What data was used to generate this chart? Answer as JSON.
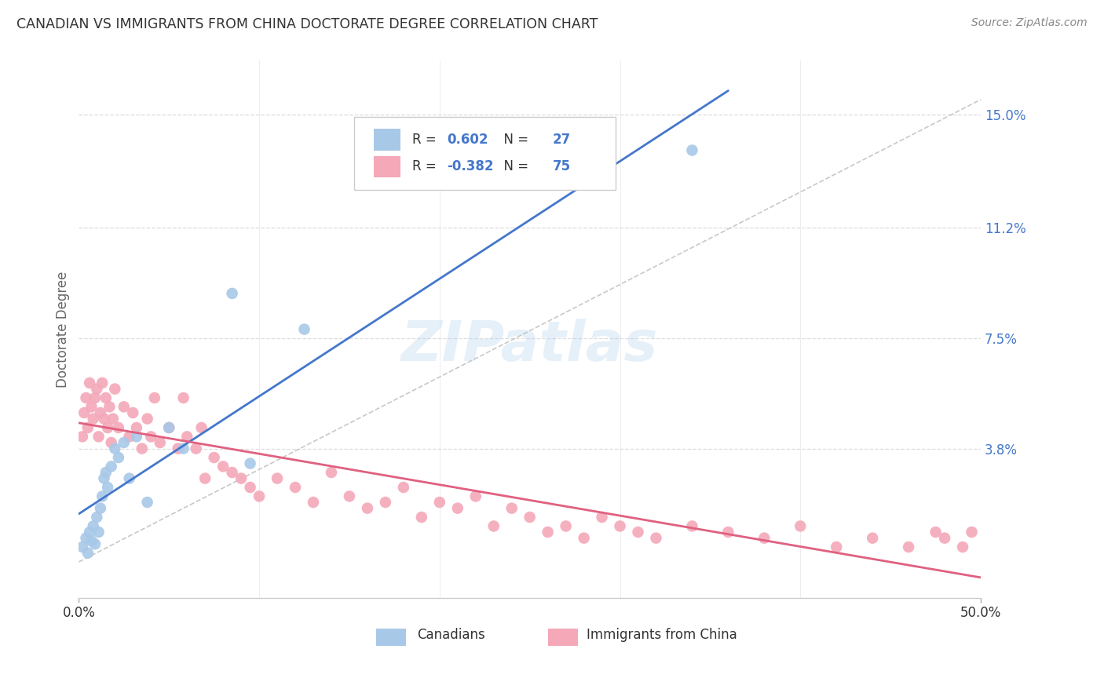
{
  "title": "CANADIAN VS IMMIGRANTS FROM CHINA DOCTORATE DEGREE CORRELATION CHART",
  "source": "Source: ZipAtlas.com",
  "ylabel": "Doctorate Degree",
  "watermark": "ZIPatlas",
  "ytick_labels": [
    "",
    "3.8%",
    "7.5%",
    "11.2%",
    "15.0%"
  ],
  "ytick_values": [
    0.0,
    0.038,
    0.075,
    0.112,
    0.15
  ],
  "xlim": [
    0.0,
    0.5
  ],
  "ylim": [
    -0.012,
    0.168
  ],
  "legend_r1": "R =  0.602",
  "legend_n1": "N = 27",
  "legend_r2": "R = -0.382",
  "legend_n2": "N = 75",
  "text_color_black": "#333333",
  "text_color_blue": "#4477cc",
  "canadian_color": "#a8c8e8",
  "china_color": "#f4a8b8",
  "canadian_line_color": "#4477cc",
  "china_line_color": "#e06080",
  "dashed_line_color": "#bbbbbb",
  "background_color": "#ffffff",
  "grid_color": "#dddddd",
  "canadian_x": [
    0.002,
    0.004,
    0.005,
    0.006,
    0.007,
    0.008,
    0.009,
    0.01,
    0.011,
    0.012,
    0.013,
    0.014,
    0.015,
    0.016,
    0.018,
    0.02,
    0.022,
    0.025,
    0.028,
    0.032,
    0.038,
    0.05,
    0.058,
    0.085,
    0.095,
    0.125,
    0.34
  ],
  "canadian_y": [
    0.005,
    0.008,
    0.003,
    0.01,
    0.007,
    0.012,
    0.006,
    0.015,
    0.01,
    0.018,
    0.022,
    0.028,
    0.03,
    0.025,
    0.032,
    0.038,
    0.035,
    0.04,
    0.028,
    0.042,
    0.02,
    0.045,
    0.038,
    0.09,
    0.033,
    0.078,
    0.138
  ],
  "china_x": [
    0.002,
    0.003,
    0.004,
    0.005,
    0.006,
    0.007,
    0.008,
    0.009,
    0.01,
    0.011,
    0.012,
    0.013,
    0.014,
    0.015,
    0.016,
    0.017,
    0.018,
    0.019,
    0.02,
    0.022,
    0.025,
    0.028,
    0.03,
    0.032,
    0.035,
    0.038,
    0.04,
    0.042,
    0.045,
    0.05,
    0.055,
    0.058,
    0.06,
    0.065,
    0.068,
    0.07,
    0.075,
    0.08,
    0.085,
    0.09,
    0.095,
    0.1,
    0.11,
    0.12,
    0.13,
    0.14,
    0.15,
    0.16,
    0.17,
    0.18,
    0.19,
    0.2,
    0.21,
    0.22,
    0.23,
    0.24,
    0.25,
    0.26,
    0.27,
    0.28,
    0.29,
    0.3,
    0.31,
    0.32,
    0.34,
    0.36,
    0.38,
    0.4,
    0.42,
    0.44,
    0.46,
    0.475,
    0.48,
    0.49,
    0.495
  ],
  "china_y": [
    0.042,
    0.05,
    0.055,
    0.045,
    0.06,
    0.052,
    0.048,
    0.055,
    0.058,
    0.042,
    0.05,
    0.06,
    0.048,
    0.055,
    0.045,
    0.052,
    0.04,
    0.048,
    0.058,
    0.045,
    0.052,
    0.042,
    0.05,
    0.045,
    0.038,
    0.048,
    0.042,
    0.055,
    0.04,
    0.045,
    0.038,
    0.055,
    0.042,
    0.038,
    0.045,
    0.028,
    0.035,
    0.032,
    0.03,
    0.028,
    0.025,
    0.022,
    0.028,
    0.025,
    0.02,
    0.03,
    0.022,
    0.018,
    0.02,
    0.025,
    0.015,
    0.02,
    0.018,
    0.022,
    0.012,
    0.018,
    0.015,
    0.01,
    0.012,
    0.008,
    0.015,
    0.012,
    0.01,
    0.008,
    0.012,
    0.01,
    0.008,
    0.012,
    0.005,
    0.008,
    0.005,
    0.01,
    0.008,
    0.005,
    0.01
  ]
}
